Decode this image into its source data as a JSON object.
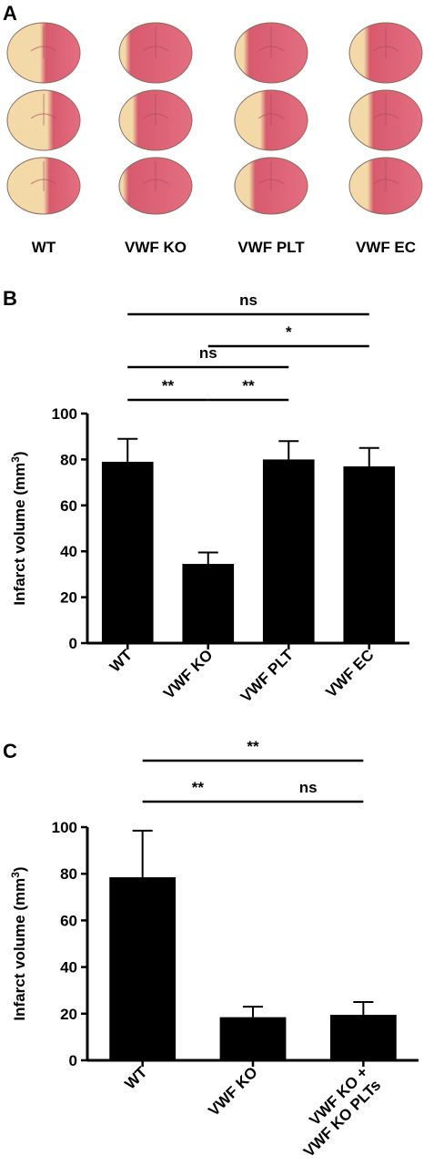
{
  "panels": {
    "a": "A",
    "b": "B",
    "c": "C"
  },
  "panel_a": {
    "labels": [
      "WT",
      "VWF KO",
      "VWF PLT",
      "VWF EC"
    ]
  },
  "colors": {
    "tissue_infarct": "#f3d9a8",
    "tissue_healthy": "#d85a6e",
    "bar": "#000000"
  },
  "chart_data": [
    {
      "panel": "B",
      "type": "bar",
      "categories": [
        "WT",
        "VWF KO",
        "VWF PLT",
        "VWF EC"
      ],
      "values": [
        79,
        34.5,
        80,
        77
      ],
      "errors": [
        10,
        5,
        8,
        8
      ],
      "ylabel": "Infarct volume (mm³)",
      "ylim": [
        0,
        100
      ],
      "yticks": [
        0,
        20,
        40,
        60,
        80,
        100
      ],
      "significance": [
        {
          "from": 0,
          "to": 3,
          "label": "ns"
        },
        {
          "from": 1,
          "to": 3,
          "label": "*"
        },
        {
          "from": 0,
          "to": 2,
          "label": "ns"
        },
        {
          "from": 0,
          "to": 1,
          "label": "**"
        },
        {
          "from": 1,
          "to": 2,
          "label": "**"
        }
      ]
    },
    {
      "panel": "C",
      "type": "bar",
      "categories": [
        "WT",
        "VWF KO",
        "VWF KO + VWF KO PLTs"
      ],
      "values": [
        78.5,
        18.5,
        19.5
      ],
      "errors": [
        20,
        4.5,
        5.5
      ],
      "ylabel": "Infarct volume (mm³)",
      "ylim": [
        0,
        100
      ],
      "yticks": [
        0,
        20,
        40,
        60,
        80,
        100
      ],
      "significance": [
        {
          "from": 0,
          "to": 2,
          "label": "**"
        },
        {
          "from": 0,
          "to": 1,
          "label": "**"
        },
        {
          "from": 1,
          "to": 2,
          "label": "ns"
        }
      ]
    }
  ]
}
